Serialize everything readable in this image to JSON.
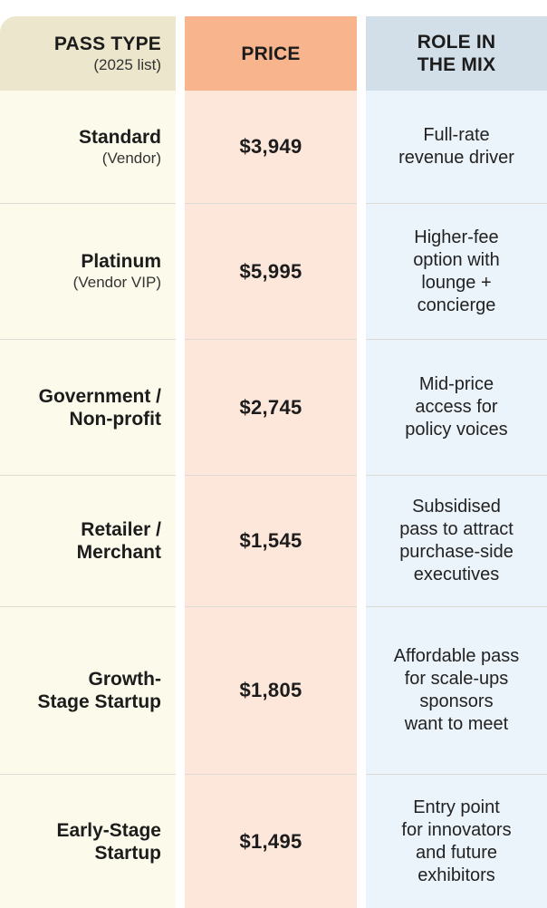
{
  "headers": {
    "pass_type": "PASS TYPE",
    "pass_type_sub": "(2025 list)",
    "price": "PRICE",
    "role": "ROLE IN\nTHE MIX"
  },
  "rows": [
    {
      "pass": "Standard",
      "sub": "(Vendor)",
      "price": "$3,949",
      "role": "Full-rate\nrevenue driver"
    },
    {
      "pass": "Platinum",
      "sub": "(Vendor VIP)",
      "price": "$5,995",
      "role": "Higher-fee\noption with\nlounge +\nconcierge"
    },
    {
      "pass": "Government /\nNon-profit",
      "sub": "",
      "price": "$2,745",
      "role": "Mid-price\naccess for\npolicy voices"
    },
    {
      "pass": "Retailer /\nMerchant",
      "sub": "",
      "price": "$1,545",
      "role": "Subsidised\npass to attract\npurchase-side\nexecutives"
    },
    {
      "pass": "Growth-\nStage Startup",
      "sub": "",
      "price": "$1,805",
      "role": "Affordable pass\nfor scale-ups\nsponsors\nwant to meet"
    },
    {
      "pass": "Early-Stage\nStartup",
      "sub": "",
      "price": "$1,495",
      "role": "Entry point\nfor innovators\nand future\nexhibitors"
    }
  ]
}
